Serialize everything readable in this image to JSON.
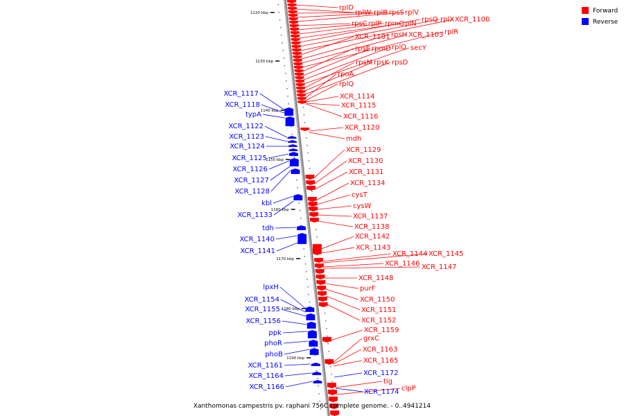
{
  "caption": "Xanthomonas campestris pv. raphani 756C complete genome. - 0..4941214",
  "legend": [
    {
      "label": "Forward",
      "color": "#ff0000"
    },
    {
      "label": "Reverse",
      "color": "#0000ff"
    }
  ],
  "colors": {
    "forward": "#ff0000",
    "reverse": "#0000ff",
    "backbone": "#808080"
  },
  "ticks": [
    "1120 kbp",
    "1130 kbp",
    "1140 kbp",
    "1150 kbp",
    "1160 kbp",
    "1170 kbp",
    "1180 kbp",
    "1190 kbp"
  ],
  "forward_labels": [
    "rplD",
    "rplW",
    "rplB",
    "rpsS",
    "rplV",
    "rpsC",
    "rplP",
    "rpmC",
    "rplN",
    "rpsQ",
    "rplX",
    "XCR_1100",
    "XCR_1101",
    "rpsH",
    "XCR_1103",
    "rplR",
    "rpsE",
    "rpmD",
    "rplO",
    "secY",
    "rpsM",
    "rpsK",
    "rpsD",
    "rpoA",
    "rplQ",
    "XCR_1114",
    "XCR_1115",
    "XCR_1116",
    "XCR_1120",
    "mdh",
    "XCR_1129",
    "XCR_1130",
    "XCR_1131",
    "XCR_1134",
    "cysT",
    "cysW",
    "XCR_1137",
    "XCR_1138",
    "XCR_1142",
    "XCR_1143",
    "XCR_1144",
    "XCR_1145",
    "XCR_1146",
    "XCR_1147",
    "XCR_1148",
    "purF",
    "XCR_1150",
    "XCR_1151",
    "XCR_1152",
    "XCR_1159",
    "grxC",
    "XCR_1163",
    "XCR_1165",
    "tig",
    "clpP"
  ],
  "reverse_labels": [
    "XCR_1117",
    "XCR_1118",
    "typA",
    "XCR_1122",
    "XCR_1123",
    "XCR_1124",
    "XCR_1125",
    "XCR_1126",
    "XCR_1127",
    "XCR_1128",
    "kbl",
    "XCR_1133",
    "tdh",
    "XCR_1140",
    "XCR_1141",
    "lpxH",
    "XCR_1154",
    "XCR_1155",
    "XCR_1156",
    "ppk",
    "phoR",
    "phoB",
    "XCR_1161",
    "XCR_1164",
    "XCR_1166",
    "XCR_1172",
    "XCR_1174"
  ]
}
